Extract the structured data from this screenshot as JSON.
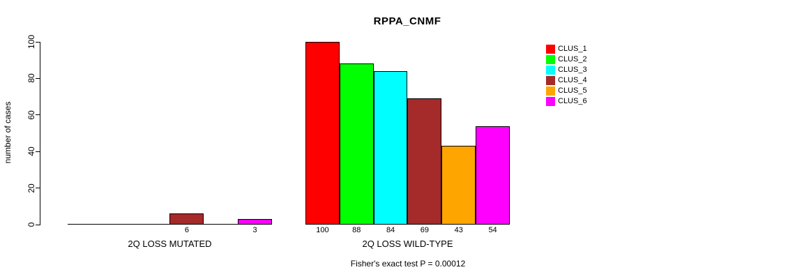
{
  "chart_data": {
    "type": "bar",
    "title": "RPPA_CNMF",
    "ylabel": "number of cases",
    "xlabel": "",
    "ylim": [
      0,
      100
    ],
    "yticks": [
      0,
      20,
      40,
      60,
      80,
      100
    ],
    "grid": false,
    "legend_position": "right",
    "categories": [
      "2Q LOSS MUTATED",
      "2Q LOSS WILD-TYPE"
    ],
    "series": [
      {
        "name": "CLUS_1",
        "color": "#FF0000",
        "values": [
          0,
          100
        ]
      },
      {
        "name": "CLUS_2",
        "color": "#00FF00",
        "values": [
          0,
          88
        ]
      },
      {
        "name": "CLUS_3",
        "color": "#00FFFF",
        "values": [
          0,
          84
        ]
      },
      {
        "name": "CLUS_4",
        "color": "#A52A2A",
        "values": [
          6,
          69
        ]
      },
      {
        "name": "CLUS_5",
        "color": "#FFA500",
        "values": [
          0,
          43
        ]
      },
      {
        "name": "CLUS_6",
        "color": "#FF00FF",
        "values": [
          3,
          54
        ]
      }
    ],
    "bar_labels_rule": "value shown under bar only when value > 0",
    "footnote": "Fisher's exact test P = 0.00012"
  }
}
